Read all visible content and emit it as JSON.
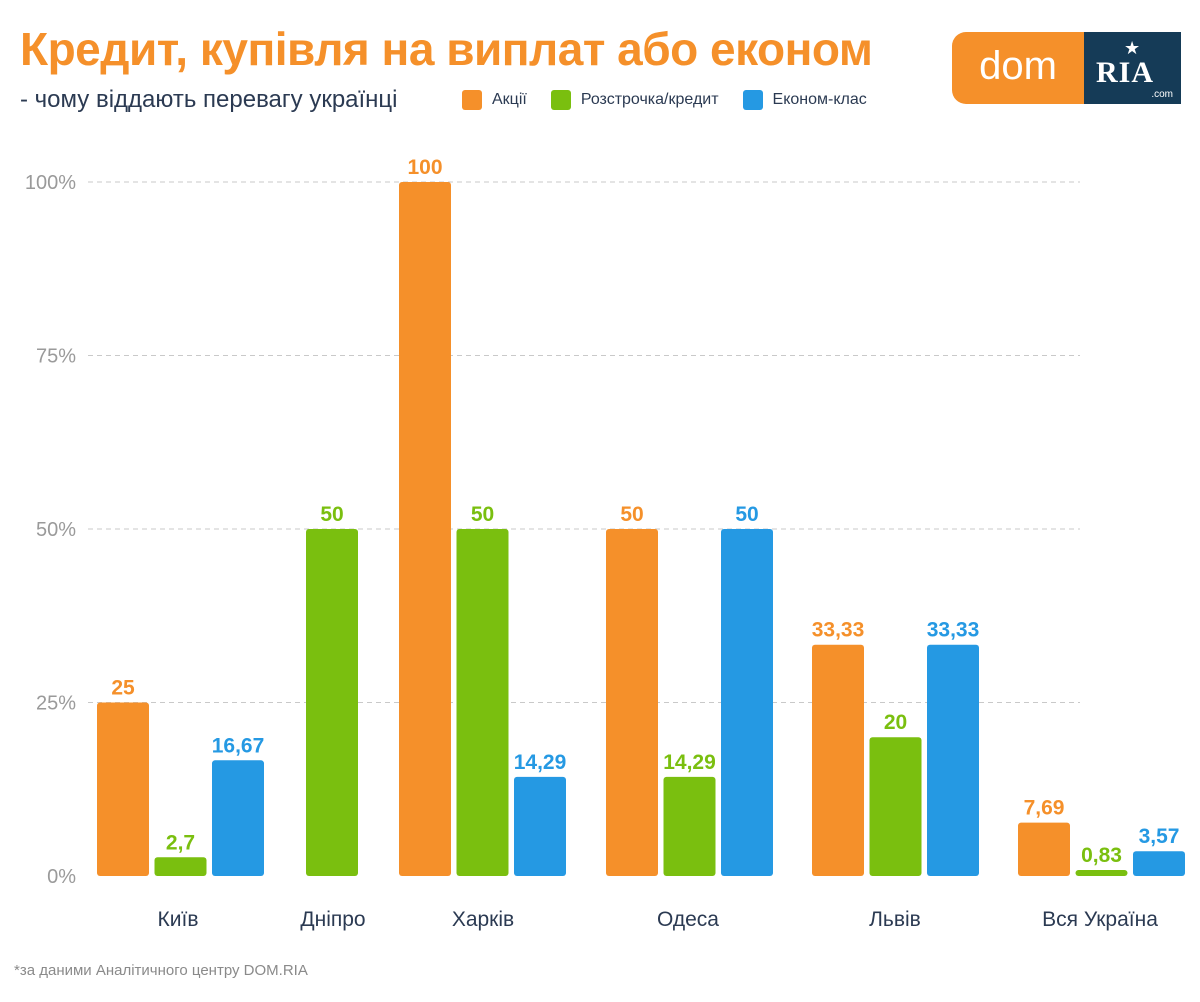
{
  "title": "Кредит, купівля на виплат або економ",
  "subtitle": "- чому віддають перевагу українці",
  "footnote": "*за даними Аналітичного центру DOM.RIA",
  "logo": {
    "left": "dom",
    "right": "RIA",
    "suffix": ".com"
  },
  "colors": {
    "accent": "#f5902a",
    "green": "#7abf0f",
    "blue": "#2599e3",
    "navy": "#153b57",
    "grid": "#c9c9c9",
    "tick": "#9a9a9a",
    "text": "#2b3a52"
  },
  "chart_data": {
    "type": "bar",
    "categories": [
      "Київ",
      "Дніпро",
      "Харків",
      "Одеса",
      "Львів",
      "Вся Україна"
    ],
    "series": [
      {
        "name": "Акції",
        "color": "#f5902a",
        "values": [
          25,
          null,
          100,
          50,
          33.33,
          7.69
        ],
        "labels": [
          "25",
          "",
          "100",
          "50",
          "33,33",
          "7,69"
        ]
      },
      {
        "name": "Розстрочка/кредит",
        "color": "#7abf0f",
        "values": [
          2.7,
          50,
          50,
          14.29,
          20,
          0.83
        ],
        "labels": [
          "2,7",
          "50",
          "50",
          "14,29",
          "20",
          "0,83"
        ]
      },
      {
        "name": "Економ-клас",
        "color": "#2599e3",
        "values": [
          16.67,
          null,
          14.29,
          50,
          33.33,
          3.57
        ],
        "labels": [
          "16,67",
          "",
          "14,29",
          "50",
          "33,33",
          "3,57"
        ]
      }
    ],
    "yticks": [
      0,
      25,
      50,
      75,
      100
    ],
    "ytick_labels": [
      "0%",
      "25%",
      "50%",
      "75%",
      "100%"
    ],
    "ylim": [
      0,
      100
    ],
    "grid": true,
    "legend": "top"
  }
}
